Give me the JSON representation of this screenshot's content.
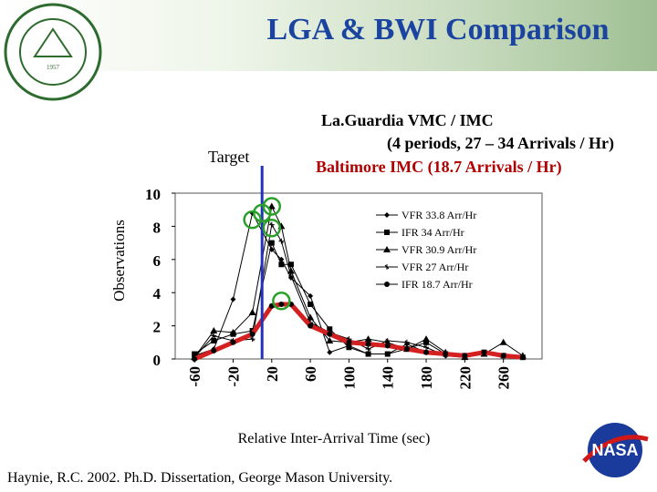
{
  "slide": {
    "title": "LGA & BWI Comparison",
    "seal_text": "GEORGE MASON UNIVERSITY · VIRGINIA",
    "seal_inner": "FREEDOM AND LEARNING",
    "seal_year": "1957",
    "nasa_logo_text": "NASA",
    "credit": "Haynie, R.C. 2002. Ph.D. Dissertation, George Mason University.",
    "colors": {
      "title": "#1a44a0",
      "baltimore": "#b00000",
      "target_line": "#2233bb",
      "circles": "#2aa02a"
    }
  },
  "chart_data": {
    "type": "line",
    "annotation_title_1": "La.Guardia VMC / IMC",
    "annotation_title_2": "(4 periods, 27 – 34 Arrivals / Hr)",
    "annotation_baltimore": "Baltimore IMC (18.7 Arrivals / Hr)",
    "target_label": "Target",
    "target_x": 10,
    "xlabel": "Relative Inter-Arrival Time (sec)",
    "ylabel": "Observations",
    "ylim": [
      0,
      10
    ],
    "yticks": [
      0,
      2,
      4,
      6,
      8,
      10
    ],
    "xlim": [
      -80,
      300
    ],
    "xticks": [
      -60,
      -20,
      20,
      60,
      100,
      140,
      180,
      220,
      260
    ],
    "legend_position": "top-right",
    "series": [
      {
        "name": "VFR 33.8 Arr/Hr",
        "marker": "diamond",
        "x": [
          -60,
          -40,
          -20,
          0,
          20,
          30,
          40,
          60,
          80,
          100,
          120,
          140,
          160,
          180,
          200,
          220,
          240,
          260,
          280
        ],
        "y": [
          0.2,
          0.6,
          3.6,
          8.8,
          6.6,
          6.0,
          4.9,
          3.8,
          0.4,
          0.8,
          0.3,
          0.3,
          0.9,
          0.4,
          0.2,
          0.1,
          0.3,
          0.2,
          0.1
        ]
      },
      {
        "name": "IFR 34 Arr/Hr",
        "marker": "square",
        "x": [
          -60,
          -40,
          -20,
          0,
          20,
          30,
          40,
          60,
          80,
          100,
          120,
          140,
          160,
          180,
          200,
          220,
          240,
          260,
          280
        ],
        "y": [
          0.3,
          1.1,
          1.5,
          1.7,
          7.0,
          5.7,
          5.7,
          3.3,
          1.8,
          0.7,
          0.3,
          0.3,
          0.6,
          1.0,
          0.3,
          0.2,
          0.4,
          0.2,
          0.1
        ]
      },
      {
        "name": "VFR 30.9 Arr/Hr",
        "marker": "triangle",
        "x": [
          -60,
          -40,
          -20,
          0,
          20,
          30,
          40,
          60,
          80,
          100,
          120,
          140,
          160,
          180,
          200,
          220,
          240,
          260,
          280
        ],
        "y": [
          0.1,
          1.7,
          1.6,
          2.8,
          9.2,
          8.0,
          5.3,
          2.5,
          1.1,
          1.0,
          1.2,
          1.0,
          0.6,
          1.2,
          0.4,
          0.1,
          0.3,
          1.0,
          0.2
        ]
      },
      {
        "name": "VFR 27 Arr/Hr",
        "marker": "star",
        "x": [
          -60,
          -40,
          -20,
          0,
          20,
          30,
          40,
          60,
          80,
          100,
          120,
          140,
          160,
          180,
          200,
          220,
          240,
          260,
          280
        ],
        "y": [
          0.1,
          1.4,
          1.1,
          1.2,
          8.1,
          7.1,
          5.0,
          2.2,
          1.6,
          1.2,
          0.6,
          1.1,
          1.0,
          0.7,
          0.2,
          0.1,
          0.3,
          0.2,
          0.1
        ]
      },
      {
        "name": "IFR 18.7 Arr/Hr",
        "marker": "circle",
        "highlight": true,
        "x": [
          -60,
          -40,
          -20,
          0,
          20,
          30,
          40,
          60,
          80,
          100,
          120,
          140,
          160,
          180,
          200,
          220,
          240,
          260,
          280
        ],
        "y": [
          0.0,
          0.5,
          1.0,
          1.5,
          3.2,
          3.3,
          3.3,
          2.0,
          1.5,
          1.0,
          0.9,
          0.8,
          0.6,
          0.4,
          0.3,
          0.2,
          0.4,
          0.2,
          0.1
        ]
      }
    ],
    "circled_points": [
      [
        0,
        8.4
      ],
      [
        10,
        8.8
      ],
      [
        20,
        9.2
      ],
      [
        20,
        7.9
      ],
      [
        30,
        3.5
      ]
    ]
  }
}
